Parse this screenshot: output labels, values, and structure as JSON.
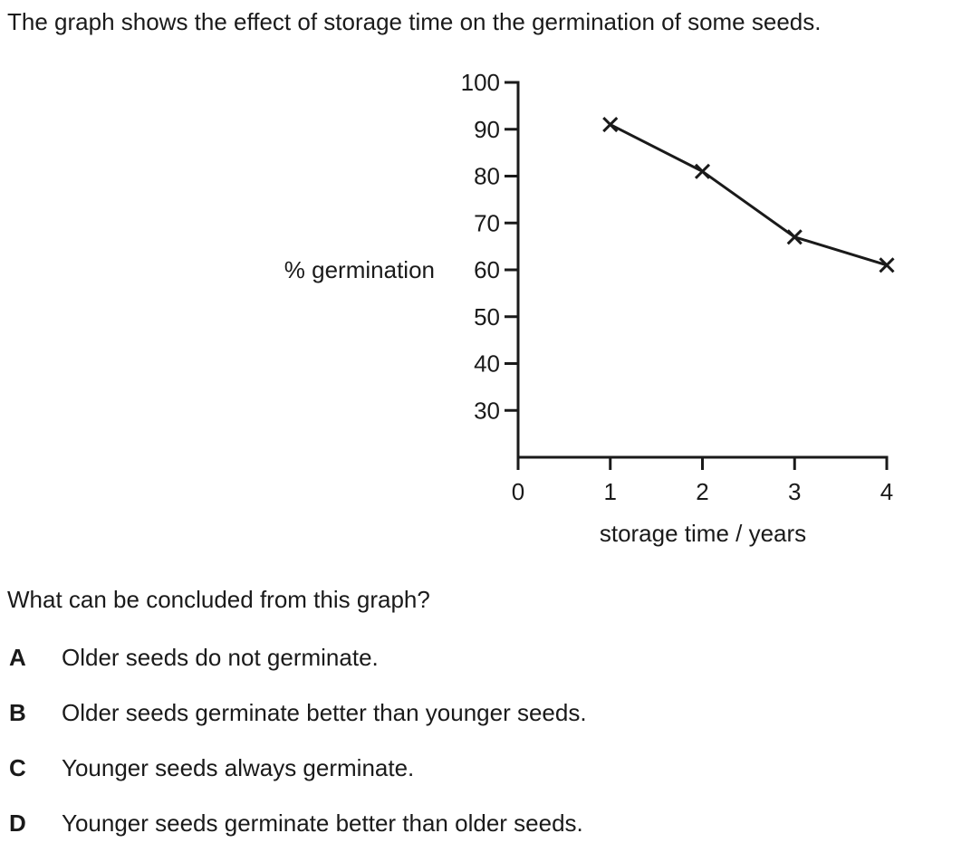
{
  "intro_text": "The graph shows the effect of storage time on the germination of some seeds.",
  "question": "What can be concluded from this graph?",
  "options": [
    {
      "letter": "A",
      "text": "Older seeds do not germinate."
    },
    {
      "letter": "B",
      "text": "Older seeds germinate better than younger seeds."
    },
    {
      "letter": "C",
      "text": "Younger seeds always germinate."
    },
    {
      "letter": "D",
      "text": "Younger seeds germinate better than older seeds."
    }
  ],
  "chart_data": {
    "type": "line",
    "title": "",
    "xlabel": "storage time / years",
    "ylabel": "% germination",
    "x": [
      1,
      2,
      3,
      4
    ],
    "series": [
      {
        "values": [
          91,
          81,
          67,
          61
        ],
        "marker": "x"
      }
    ],
    "xlim": [
      0,
      4
    ],
    "ylim": [
      20,
      100
    ],
    "xticks": [
      0,
      1,
      2,
      3,
      4
    ],
    "yticks": [
      30,
      40,
      50,
      60,
      70,
      80,
      90,
      100
    ],
    "grid": false,
    "line_color": "#1a1a1a"
  }
}
